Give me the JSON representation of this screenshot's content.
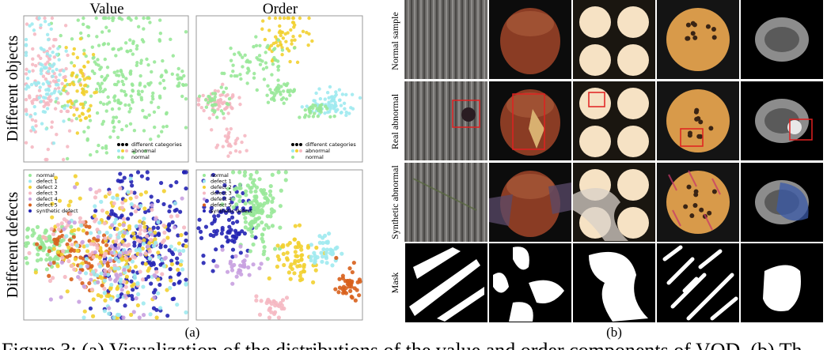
{
  "panel_a": {
    "label": "(a)",
    "column_titles": [
      "Value",
      "Order"
    ],
    "row_titles": [
      "Different objects",
      "Different defects"
    ],
    "legend_objects": [
      "different categories",
      "abnormal",
      "normal"
    ],
    "legend_defects": [
      "normal",
      "defect 1",
      "defect 2",
      "defect 3",
      "defect 4",
      "defect 5",
      "synthetic defect"
    ]
  },
  "panel_b": {
    "label": "(b)",
    "row_titles": [
      "Normal sample",
      "Real abnormal",
      "Synthetic abnormal",
      "Mask"
    ]
  },
  "caption": "Figure 3: (a) Visualization of the distributions of the value and order components of VQD. (b) Th"
}
